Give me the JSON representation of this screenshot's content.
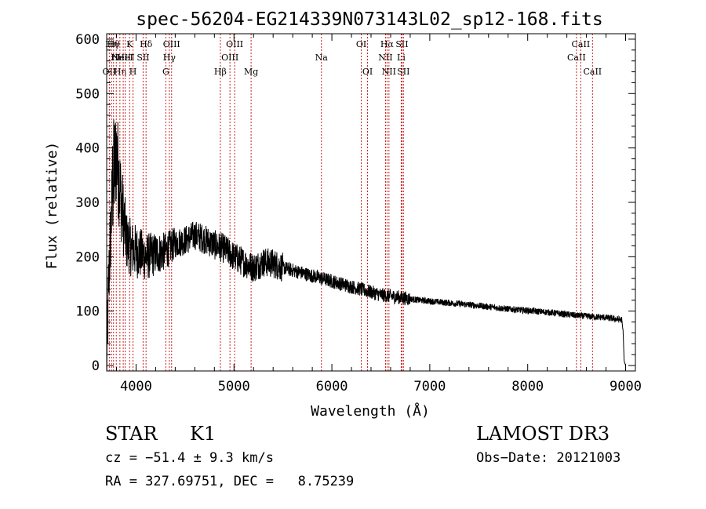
{
  "chart_data": {
    "type": "line",
    "title": "spec-56204-EG214339N073143L02_sp12-168.fits",
    "xlabel": "Wavelength (Å)",
    "ylabel": "Flux (relative)",
    "xlim": [
      3700,
      9100
    ],
    "ylim": [
      -10,
      610
    ],
    "xticks": [
      4000,
      5000,
      6000,
      7000,
      8000,
      9000
    ],
    "xtick_labels": [
      "4000",
      "5000",
      "6000",
      "7000",
      "8000",
      "9000"
    ],
    "yticks": [
      0,
      100,
      200,
      300,
      400,
      500,
      600
    ],
    "ytick_labels": [
      "0",
      "100",
      "200",
      "300",
      "400",
      "500",
      "600"
    ],
    "lines": [
      {
        "wl": 3727,
        "label": "OII",
        "row": 2
      },
      {
        "wl": 3750,
        "label": "Hη",
        "row": 0
      },
      {
        "wl": 3770,
        "label": "Hθ",
        "row": 0
      },
      {
        "wl": 3798,
        "label": "Hι",
        "row": 1
      },
      {
        "wl": 3835,
        "label": "Hη",
        "row": 2
      },
      {
        "wl": 3869,
        "label": "NeIII",
        "row": 1
      },
      {
        "wl": 3889,
        "label": "HeI",
        "row": 1
      },
      {
        "wl": 3934,
        "label": "K",
        "row": 0
      },
      {
        "wl": 3969,
        "label": "H",
        "row": 2
      },
      {
        "wl": 4072,
        "label": "SII",
        "row": 1
      },
      {
        "wl": 4102,
        "label": "Hδ",
        "row": 0
      },
      {
        "wl": 4304,
        "label": "G",
        "row": 2
      },
      {
        "wl": 4340,
        "label": "Hγ",
        "row": 1
      },
      {
        "wl": 4363,
        "label": "OIII",
        "row": 0
      },
      {
        "wl": 4861,
        "label": "Hβ",
        "row": 2
      },
      {
        "wl": 4959,
        "label": "OIII",
        "row": 1
      },
      {
        "wl": 5007,
        "label": "OIII",
        "row": 0
      },
      {
        "wl": 5175,
        "label": "Mg",
        "row": 2
      },
      {
        "wl": 5893,
        "label": "Na",
        "row": 1
      },
      {
        "wl": 6300,
        "label": "OI",
        "row": 0
      },
      {
        "wl": 6364,
        "label": "OI",
        "row": 2
      },
      {
        "wl": 6548,
        "label": "NII",
        "row": 1
      },
      {
        "wl": 6563,
        "label": "Hα",
        "row": 0
      },
      {
        "wl": 6583,
        "label": "NII",
        "row": 2
      },
      {
        "wl": 6708,
        "label": "Li",
        "row": 1
      },
      {
        "wl": 6716,
        "label": "SII",
        "row": 0
      },
      {
        "wl": 6731,
        "label": "SII",
        "row": 2
      },
      {
        "wl": 8498,
        "label": "CaII",
        "row": 1
      },
      {
        "wl": 8542,
        "label": "CaII",
        "row": 0
      },
      {
        "wl": 8662,
        "label": "CaII",
        "row": 2
      }
    ],
    "spectrum_anchors": [
      [
        3700,
        0
      ],
      [
        3720,
        150
      ],
      [
        3760,
        330
      ],
      [
        3800,
        390
      ],
      [
        3850,
        300
      ],
      [
        3900,
        230
      ],
      [
        3950,
        215
      ],
      [
        4000,
        210
      ],
      [
        4100,
        200
      ],
      [
        4200,
        205
      ],
      [
        4300,
        210
      ],
      [
        4400,
        225
      ],
      [
        4500,
        230
      ],
      [
        4600,
        240
      ],
      [
        4700,
        232
      ],
      [
        4800,
        222
      ],
      [
        4900,
        215
      ],
      [
        5000,
        200
      ],
      [
        5100,
        190
      ],
      [
        5200,
        180
      ],
      [
        5300,
        190
      ],
      [
        5400,
        188
      ],
      [
        5500,
        180
      ],
      [
        5700,
        170
      ],
      [
        5900,
        160
      ],
      [
        6100,
        150
      ],
      [
        6300,
        140
      ],
      [
        6500,
        130
      ],
      [
        6700,
        125
      ],
      [
        6900,
        120
      ],
      [
        7200,
        115
      ],
      [
        7500,
        110
      ],
      [
        7800,
        104
      ],
      [
        8200,
        98
      ],
      [
        8500,
        92
      ],
      [
        8800,
        88
      ],
      [
        8960,
        84
      ],
      [
        8975,
        60
      ],
      [
        8985,
        8
      ],
      [
        9000,
        0
      ]
    ]
  },
  "footer": {
    "object_type": "STAR",
    "subclass": "K1",
    "survey": "LAMOST DR3",
    "cz": "cz = −51.4 ± 9.3 km/s",
    "obs_date": "Obs−Date: 20121003",
    "coords": "RA = 327.69751, DEC =   8.75239"
  }
}
